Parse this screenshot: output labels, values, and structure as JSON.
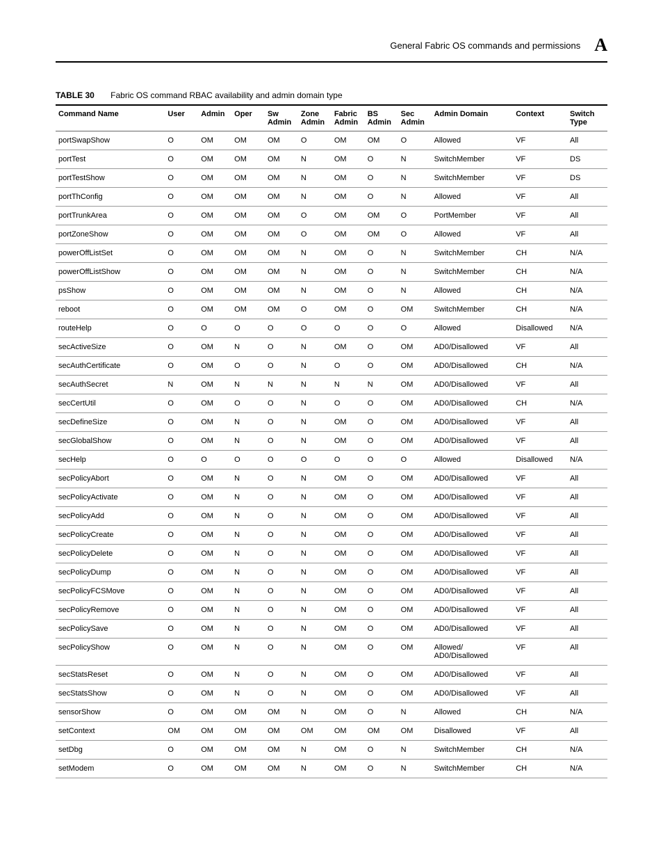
{
  "header": {
    "title": "General Fabric OS commands and permissions",
    "appendix": "A"
  },
  "table": {
    "number": "TABLE 30",
    "title": "Fabric OS command RBAC availability and admin domain type",
    "columns": [
      {
        "label": "Command Name",
        "sub": ""
      },
      {
        "label": "User",
        "sub": ""
      },
      {
        "label": "Admin",
        "sub": ""
      },
      {
        "label": "Oper",
        "sub": ""
      },
      {
        "label": "Sw",
        "sub": "Admin"
      },
      {
        "label": "Zone",
        "sub": "Admin"
      },
      {
        "label": "Fabric",
        "sub": "Admin"
      },
      {
        "label": "BS",
        "sub": "Admin"
      },
      {
        "label": "Sec",
        "sub": "Admin"
      },
      {
        "label": "Admin Domain",
        "sub": ""
      },
      {
        "label": "Context",
        "sub": ""
      },
      {
        "label": "Switch",
        "sub": "Type"
      }
    ],
    "rows": [
      [
        "portSwapShow",
        "O",
        "OM",
        "OM",
        "OM",
        "O",
        "OM",
        "OM",
        "O",
        "Allowed",
        "VF",
        "All"
      ],
      [
        "portTest",
        "O",
        "OM",
        "OM",
        "OM",
        "N",
        "OM",
        "O",
        "N",
        "SwitchMember",
        "VF",
        "DS"
      ],
      [
        "portTestShow",
        "O",
        "OM",
        "OM",
        "OM",
        "N",
        "OM",
        "O",
        "N",
        "SwitchMember",
        "VF",
        "DS"
      ],
      [
        "portThConfig",
        "O",
        "OM",
        "OM",
        "OM",
        "N",
        "OM",
        "O",
        "N",
        "Allowed",
        "VF",
        "All"
      ],
      [
        "portTrunkArea",
        "O",
        "OM",
        "OM",
        "OM",
        "O",
        "OM",
        "OM",
        "O",
        "PortMember",
        "VF",
        "All"
      ],
      [
        "portZoneShow",
        "O",
        "OM",
        "OM",
        "OM",
        "O",
        "OM",
        "OM",
        "O",
        "Allowed",
        "VF",
        "All"
      ],
      [
        "powerOffListSet",
        "O",
        "OM",
        "OM",
        "OM",
        "N",
        "OM",
        "O",
        "N",
        "SwitchMember",
        "CH",
        "N/A"
      ],
      [
        "powerOffListShow",
        "O",
        "OM",
        "OM",
        "OM",
        "N",
        "OM",
        "O",
        "N",
        "SwitchMember",
        "CH",
        "N/A"
      ],
      [
        "psShow",
        "O",
        "OM",
        "OM",
        "OM",
        "N",
        "OM",
        "O",
        "N",
        "Allowed",
        "CH",
        "N/A"
      ],
      [
        "reboot",
        "O",
        "OM",
        "OM",
        "OM",
        "O",
        "OM",
        "O",
        "OM",
        "SwitchMember",
        "CH",
        "N/A"
      ],
      [
        "routeHelp",
        "O",
        "O",
        "O",
        "O",
        "O",
        "O",
        "O",
        "O",
        "Allowed",
        "Disallowed",
        "N/A"
      ],
      [
        "secActiveSize",
        "O",
        "OM",
        "N",
        "O",
        "N",
        "OM",
        "O",
        "OM",
        "AD0/Disallowed",
        "VF",
        "All"
      ],
      [
        "secAuthCertificate",
        "O",
        "OM",
        "O",
        "O",
        "N",
        "O",
        "O",
        "OM",
        "AD0/Disallowed",
        "CH",
        "N/A"
      ],
      [
        "secAuthSecret",
        "N",
        "OM",
        "N",
        "N",
        "N",
        "N",
        "N",
        "OM",
        "AD0/Disallowed",
        "VF",
        "All"
      ],
      [
        "secCertUtil",
        "O",
        "OM",
        "O",
        "O",
        "N",
        "O",
        "O",
        "OM",
        "AD0/Disallowed",
        "CH",
        "N/A"
      ],
      [
        "secDefineSize",
        "O",
        "OM",
        "N",
        "O",
        "N",
        "OM",
        "O",
        "OM",
        "AD0/Disallowed",
        "VF",
        "All"
      ],
      [
        "secGlobalShow",
        "O",
        "OM",
        "N",
        "O",
        "N",
        "OM",
        "O",
        "OM",
        "AD0/Disallowed",
        "VF",
        "All"
      ],
      [
        "secHelp",
        "O",
        "O",
        "O",
        "O",
        "O",
        "O",
        "O",
        "O",
        "Allowed",
        "Disallowed",
        "N/A"
      ],
      [
        "secPolicyAbort",
        "O",
        "OM",
        "N",
        "O",
        "N",
        "OM",
        "O",
        "OM",
        "AD0/Disallowed",
        "VF",
        "All"
      ],
      [
        "secPolicyActivate",
        "O",
        "OM",
        "N",
        "O",
        "N",
        "OM",
        "O",
        "OM",
        "AD0/Disallowed",
        "VF",
        "All"
      ],
      [
        "secPolicyAdd",
        "O",
        "OM",
        "N",
        "O",
        "N",
        "OM",
        "O",
        "OM",
        "AD0/Disallowed",
        "VF",
        "All"
      ],
      [
        "secPolicyCreate",
        "O",
        "OM",
        "N",
        "O",
        "N",
        "OM",
        "O",
        "OM",
        "AD0/Disallowed",
        "VF",
        "All"
      ],
      [
        "secPolicyDelete",
        "O",
        "OM",
        "N",
        "O",
        "N",
        "OM",
        "O",
        "OM",
        "AD0/Disallowed",
        "VF",
        "All"
      ],
      [
        "secPolicyDump",
        "O",
        "OM",
        "N",
        "O",
        "N",
        "OM",
        "O",
        "OM",
        "AD0/Disallowed",
        "VF",
        "All"
      ],
      [
        "secPolicyFCSMove",
        "O",
        "OM",
        "N",
        "O",
        "N",
        "OM",
        "O",
        "OM",
        "AD0/Disallowed",
        "VF",
        "All"
      ],
      [
        "secPolicyRemove",
        "O",
        "OM",
        "N",
        "O",
        "N",
        "OM",
        "O",
        "OM",
        "AD0/Disallowed",
        "VF",
        "All"
      ],
      [
        "secPolicySave",
        "O",
        "OM",
        "N",
        "O",
        "N",
        "OM",
        "O",
        "OM",
        "AD0/Disallowed",
        "VF",
        "All"
      ],
      [
        "secPolicyShow",
        "O",
        "OM",
        "N",
        "O",
        "N",
        "OM",
        "O",
        "OM",
        "Allowed/ AD0/Disallowed",
        "VF",
        "All"
      ],
      [
        "secStatsReset",
        "O",
        "OM",
        "N",
        "O",
        "N",
        "OM",
        "O",
        "OM",
        "AD0/Disallowed",
        "VF",
        "All"
      ],
      [
        "secStatsShow",
        "O",
        "OM",
        "N",
        "O",
        "N",
        "OM",
        "O",
        "OM",
        "AD0/Disallowed",
        "VF",
        "All"
      ],
      [
        "sensorShow",
        "O",
        "OM",
        "OM",
        "OM",
        "N",
        "OM",
        "O",
        "N",
        "Allowed",
        "CH",
        "N/A"
      ],
      [
        "setContext",
        "OM",
        "OM",
        "OM",
        "OM",
        "OM",
        "OM",
        "OM",
        "OM",
        "Disallowed",
        "VF",
        "All"
      ],
      [
        "setDbg",
        "O",
        "OM",
        "OM",
        "OM",
        "N",
        "OM",
        "O",
        "N",
        "SwitchMember",
        "CH",
        "N/A"
      ],
      [
        "setModem",
        "O",
        "OM",
        "OM",
        "OM",
        "N",
        "OM",
        "O",
        "N",
        "SwitchMember",
        "CH",
        "N/A"
      ]
    ]
  }
}
